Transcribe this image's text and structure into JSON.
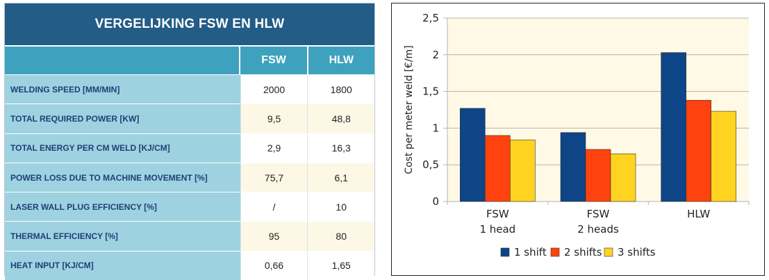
{
  "table": {
    "title": "VERGELIJKING FSW EN HLW",
    "columns": [
      "FSW",
      "HLW"
    ],
    "rows": [
      {
        "label": "WELDING  SPEED [MM/MIN]",
        "fsw": "2000",
        "hlw": "1800"
      },
      {
        "label": "TOTAL REQUIRED POWER [KW]",
        "fsw": "9,5",
        "hlw": "48,8"
      },
      {
        "label": "TOTAL ENERGY PER CM WELD  [KJ/CM]",
        "fsw": "2,9",
        "hlw": "16,3"
      },
      {
        "label": "POWER LOSS  DUE TO MACHINE MOVEMENT  [%]",
        "fsw": "75,7",
        "hlw": "6,1"
      },
      {
        "label": "LASER  WALL PLUG EFFICIENCY [%]",
        "fsw": "/",
        "hlw": "10"
      },
      {
        "label": "THERMAL EFFICIENCY [%]",
        "fsw": "95",
        "hlw": "80"
      },
      {
        "label": "HEAT INPUT  [KJ/CM]",
        "fsw": "0,66",
        "hlw": "1,65"
      }
    ]
  },
  "chart_data": {
    "type": "bar",
    "title": "",
    "xlabel": "",
    "ylabel": "Cost per meter weld [€/m]",
    "categories": [
      [
        "FSW",
        "1 head"
      ],
      [
        "FSW",
        "2 heads"
      ],
      [
        "HLW"
      ]
    ],
    "series": [
      {
        "name": "1 shift",
        "color": "#0d4587",
        "values": [
          1.27,
          0.94,
          2.03
        ]
      },
      {
        "name": "2 shifts",
        "color": "#ff420e",
        "values": [
          0.9,
          0.71,
          1.38
        ]
      },
      {
        "name": "3 shifts",
        "color": "#ffd320",
        "values": [
          0.84,
          0.65,
          1.23
        ]
      }
    ],
    "ylim": [
      0,
      2.5
    ],
    "yticks": [
      "0",
      "0,5",
      "1",
      "1,5",
      "2",
      "2,5"
    ],
    "ytick_values": [
      0,
      0.5,
      1,
      1.5,
      2,
      2.5
    ],
    "grid": true,
    "plot_background": "#fff9e5",
    "legend_position": "bottom"
  }
}
